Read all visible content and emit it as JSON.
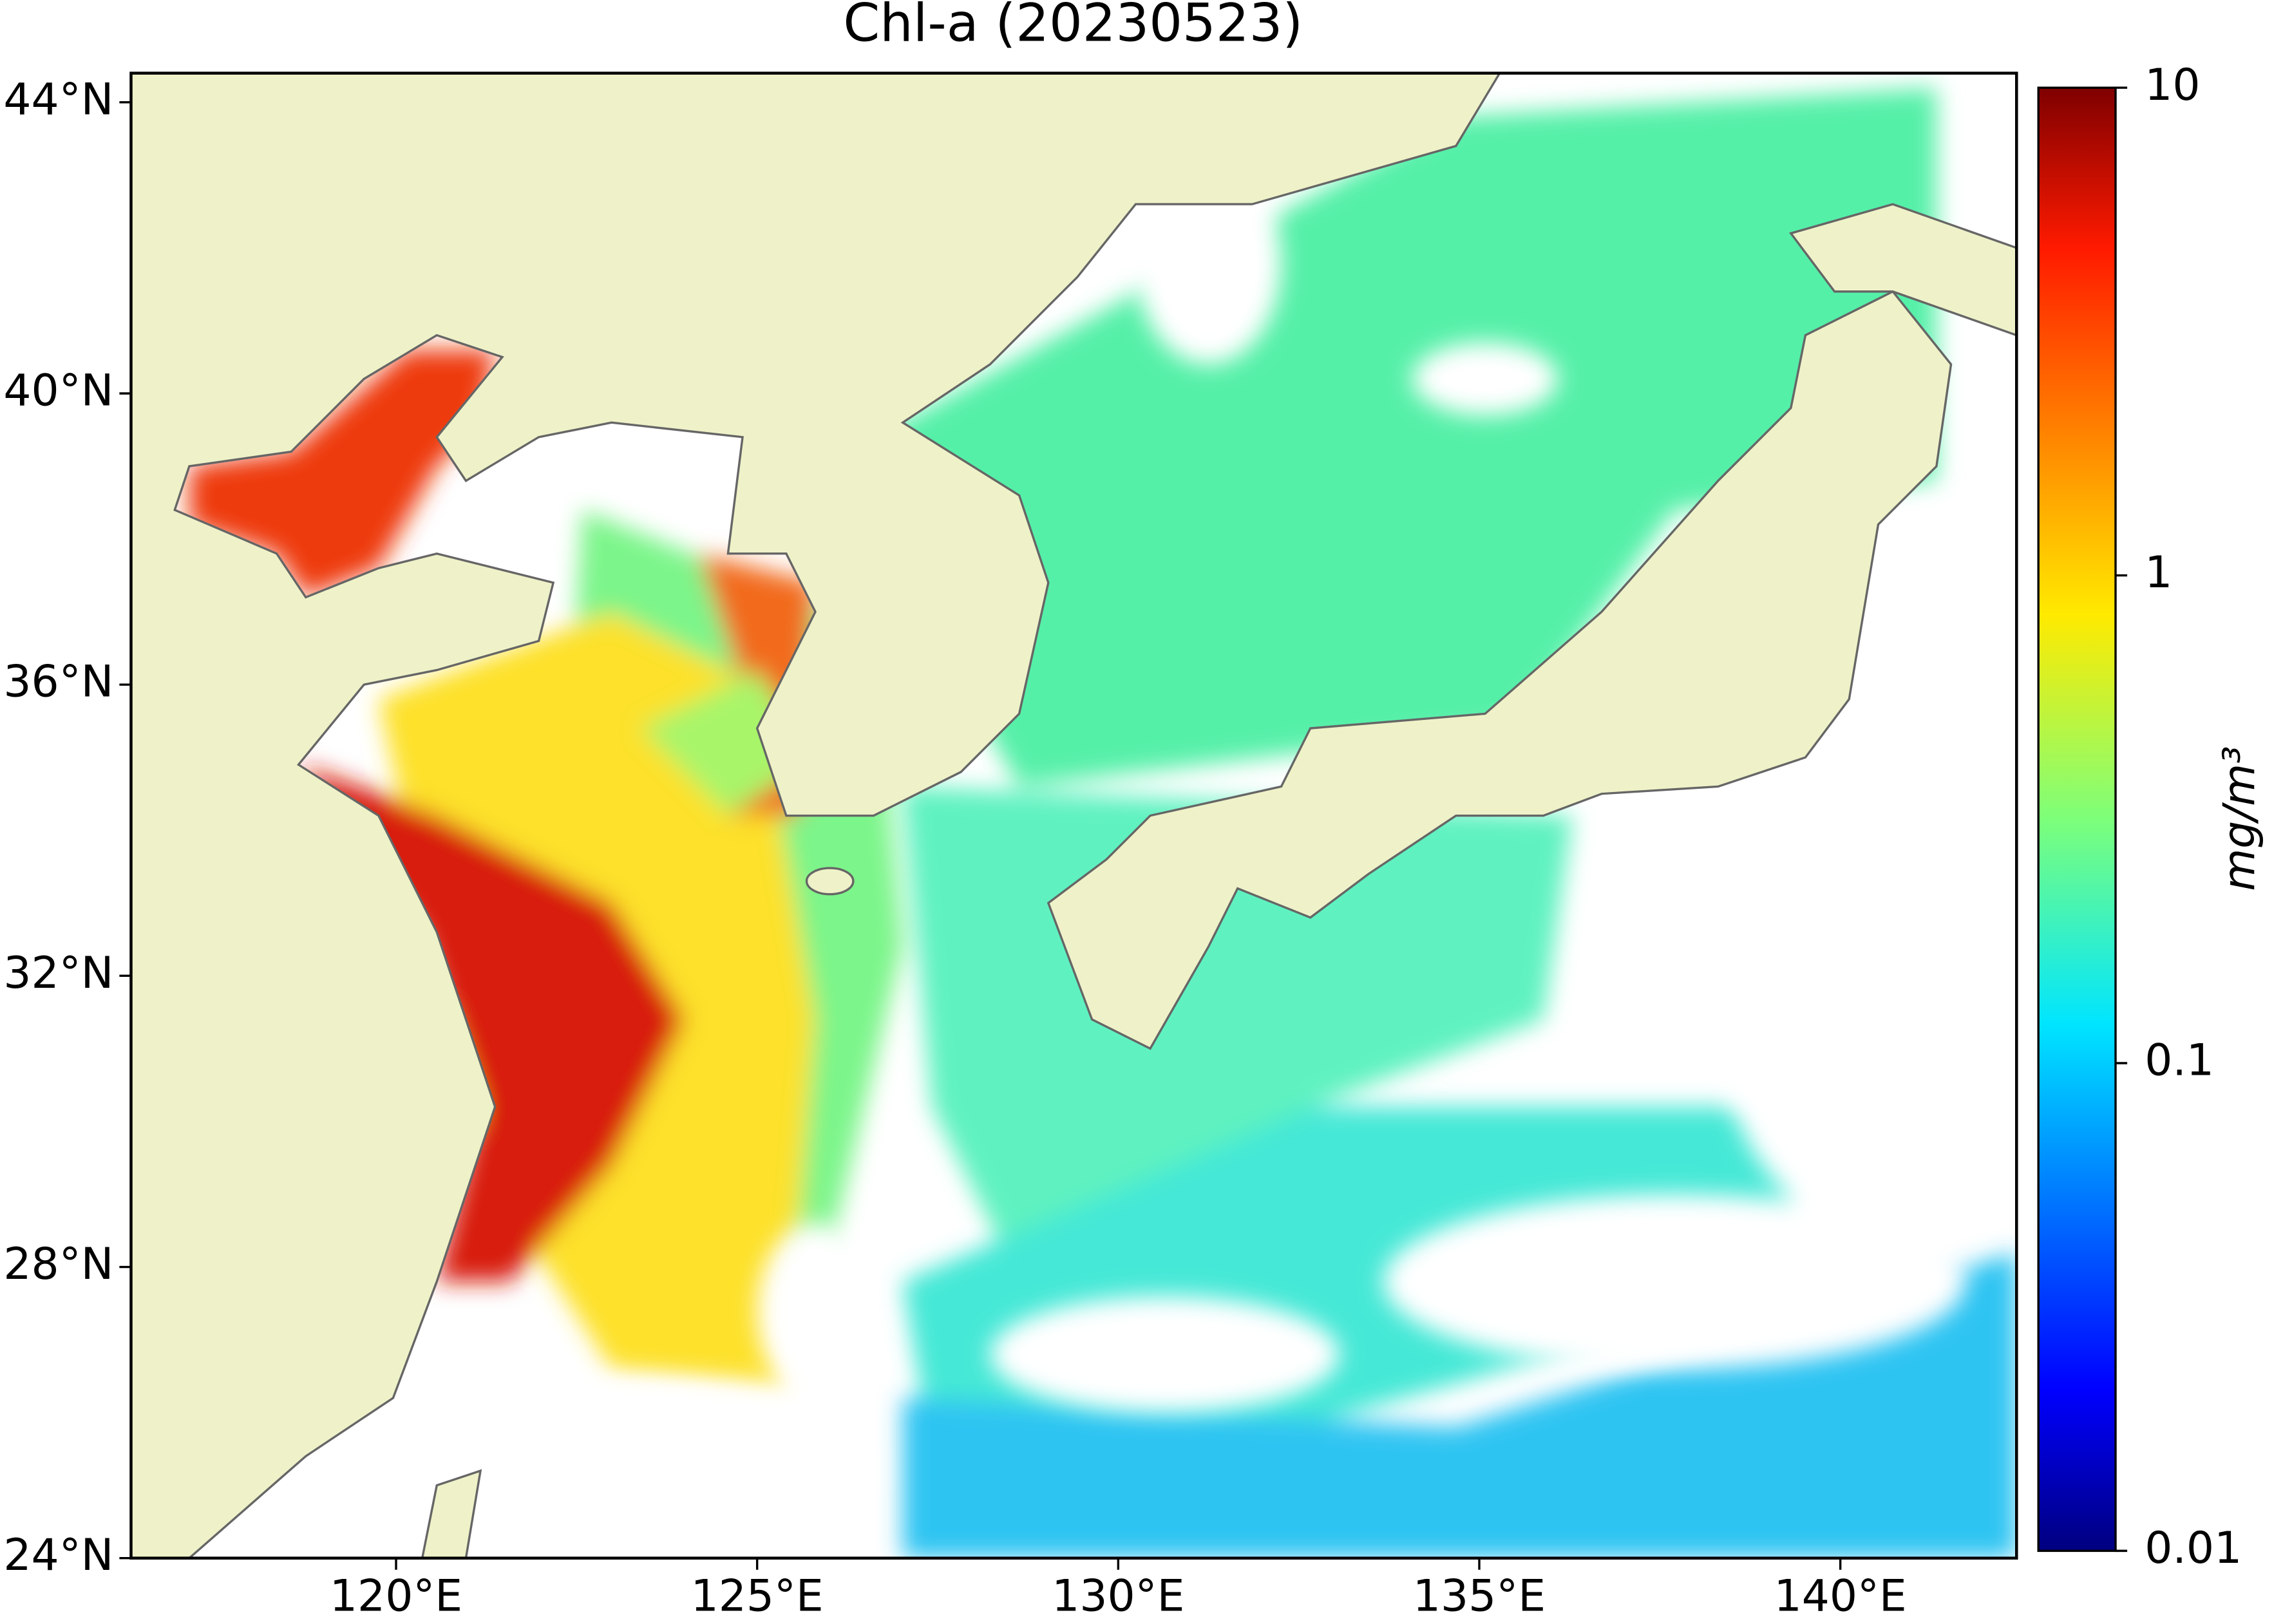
{
  "chart_data": {
    "type": "map",
    "title": "Chl-a (20230523)",
    "xlim": [
      116.33,
      142.44
    ],
    "ylim": [
      24,
      44.4
    ],
    "xticks": [
      {
        "value": 120,
        "label": "120°E"
      },
      {
        "value": 125,
        "label": "125°E"
      },
      {
        "value": 130,
        "label": "130°E"
      },
      {
        "value": 135,
        "label": "135°E"
      },
      {
        "value": 140,
        "label": "140°E"
      }
    ],
    "yticks": [
      {
        "value": 24,
        "label": "24°N"
      },
      {
        "value": 28,
        "label": "28°N"
      },
      {
        "value": 32,
        "label": "32°N"
      },
      {
        "value": 36,
        "label": "36°N"
      },
      {
        "value": 40,
        "label": "40°N"
      },
      {
        "value": 44,
        "label": "44°N"
      }
    ],
    "colorbar": {
      "label": "mg/m³",
      "lim": [
        0.01,
        10
      ],
      "ticks": [
        0.01,
        0.1,
        1,
        10
      ],
      "log": true,
      "colormap": "jet"
    }
  }
}
